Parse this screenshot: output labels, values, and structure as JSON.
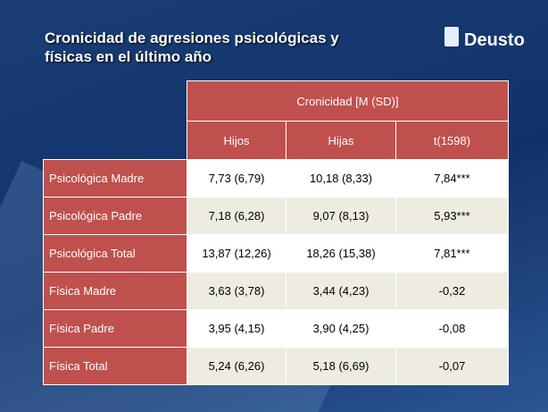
{
  "header": {
    "title_lines": [
      "Cronicidad de agresiones psicológicas y",
      "físicas en el último año"
    ],
    "logo": "Deusto"
  },
  "table": {
    "group_header": "Cronicidad [M (SD)]",
    "columns": [
      "Hijos",
      "Hijas",
      "t(1598)"
    ],
    "rows": [
      [
        "Psicológica Madre",
        "7,73 (6,79)",
        "10,18  (8,33)",
        "7,84***"
      ],
      [
        "Psicológica Padre",
        "7,18 (6,28)",
        "9,07 (8,13)",
        "5,93***"
      ],
      [
        "Psicológica Total",
        "13,87 (12,26)",
        "18,26 (15,38)",
        "7,81***"
      ],
      [
        "Física Madre",
        "3,63 (3,78)",
        "3,44 (4,23)",
        "-0,32"
      ],
      [
        "Física Padre",
        "3,95 (4,15)",
        "3,90 (4,25)",
        "-0,08"
      ],
      [
        "Física Total",
        "5,24 (6,26)",
        "5,18 (6,69)",
        "-0,07"
      ]
    ]
  }
}
